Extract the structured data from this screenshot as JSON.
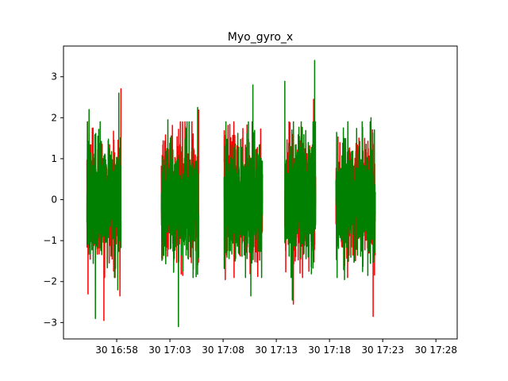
{
  "chart_data": {
    "type": "line",
    "title": "Myo_gyro_x",
    "xlabel": "",
    "ylabel": "",
    "x_unit": "minutes after 16:53 on day 30",
    "xlim": [
      0,
      37
    ],
    "ylim": [
      -3.4,
      3.75
    ],
    "grid": false,
    "legend": "none",
    "x_ticks": [
      {
        "value": 5,
        "label": "30 16:58"
      },
      {
        "value": 10,
        "label": "30 17:03"
      },
      {
        "value": 15,
        "label": "30 17:08"
      },
      {
        "value": 20,
        "label": "30 17:13"
      },
      {
        "value": 25,
        "label": "30 17:18"
      },
      {
        "value": 30,
        "label": "30 17:23"
      },
      {
        "value": 35,
        "label": "30 17:28"
      }
    ],
    "y_ticks": [
      -3,
      -2,
      -1,
      0,
      1,
      2,
      3
    ],
    "y_tick_labels": [
      "−3",
      "−2",
      "−1",
      "0",
      "1",
      "2",
      "3"
    ],
    "segments": [
      {
        "start": 2.2,
        "end": 5.4
      },
      {
        "start": 9.2,
        "end": 12.7
      },
      {
        "start": 15.1,
        "end": 18.7
      },
      {
        "start": 20.8,
        "end": 23.7
      },
      {
        "start": 25.6,
        "end": 29.3
      }
    ],
    "series": [
      {
        "color": "#ff0000",
        "peaks": [
          {
            "x": 2.3,
            "y": 2.25
          },
          {
            "x": 2.3,
            "y": -2.3
          },
          {
            "x": 3.8,
            "y": -2.95
          },
          {
            "x": 5.4,
            "y": 2.72
          },
          {
            "x": 5.3,
            "y": -2.35
          },
          {
            "x": 10.2,
            "y": 1.45
          },
          {
            "x": 9.3,
            "y": -1.45
          },
          {
            "x": 12.7,
            "y": 2.2
          },
          {
            "x": 11.2,
            "y": -1.85
          },
          {
            "x": 16.8,
            "y": 1.5
          },
          {
            "x": 15.2,
            "y": -1.95
          },
          {
            "x": 23.5,
            "y": 2.45
          },
          {
            "x": 21.6,
            "y": -2.55
          },
          {
            "x": 29.1,
            "y": 2.35
          },
          {
            "x": 29.1,
            "y": -2.85
          }
        ]
      },
      {
        "color": "#008000",
        "peaks": [
          {
            "x": 2.4,
            "y": 2.2
          },
          {
            "x": 3.0,
            "y": -2.9
          },
          {
            "x": 5.2,
            "y": 2.6
          },
          {
            "x": 5.1,
            "y": -2.2
          },
          {
            "x": 9.8,
            "y": 1.95
          },
          {
            "x": 10.8,
            "y": -3.1
          },
          {
            "x": 12.6,
            "y": 2.25
          },
          {
            "x": 12.2,
            "y": -1.7
          },
          {
            "x": 17.8,
            "y": 2.8
          },
          {
            "x": 17.6,
            "y": -2.35
          },
          {
            "x": 20.8,
            "y": 2.9
          },
          {
            "x": 21.5,
            "y": -2.45
          },
          {
            "x": 23.6,
            "y": 3.4
          },
          {
            "x": 26.3,
            "y": 1.75
          },
          {
            "x": 26.4,
            "y": -1.95
          },
          {
            "x": 28.9,
            "y": 2.0
          },
          {
            "x": 28.6,
            "y": -1.85
          }
        ]
      }
    ]
  }
}
